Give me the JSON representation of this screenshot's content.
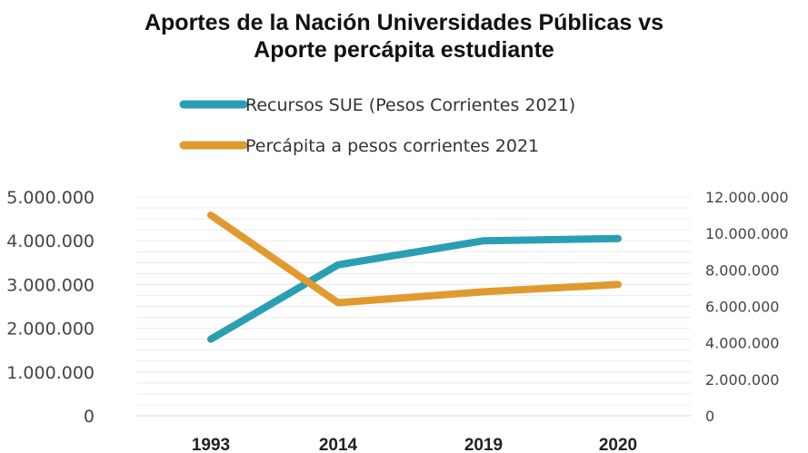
{
  "chart_data": {
    "type": "line",
    "title_line1": "Aportes de la Nación Universidades Públicas vs",
    "title_line2": "Aporte percápita estudiante",
    "categories": [
      "1993",
      "2014",
      "2019",
      "2020"
    ],
    "series": [
      {
        "name": "Recursos SUE (Pesos Corrientes 2021)",
        "axis": "left",
        "color": "#2a9fb3",
        "values": [
          1750000,
          3450000,
          4000000,
          4050000
        ]
      },
      {
        "name": "Percápita  a pesos corrientes 2021",
        "axis": "right",
        "color": "#e09a2e",
        "values": [
          11000000,
          6200000,
          6800000,
          7200000
        ]
      }
    ],
    "y_left": {
      "ylim": [
        0,
        5000000
      ],
      "ticks": [
        0,
        1000000,
        2000000,
        3000000,
        4000000,
        5000000
      ],
      "tick_labels": [
        "0",
        "1.000.000",
        "2.000.000",
        "3.000.000",
        "4.000.000",
        "5.000.000"
      ]
    },
    "y_right": {
      "ylim": [
        0,
        12000000
      ],
      "ticks": [
        0,
        2000000,
        4000000,
        6000000,
        8000000,
        10000000,
        12000000
      ],
      "tick_labels": [
        "0",
        "2.000.000",
        "4.000.000",
        "6.000.000",
        "8.000.000",
        "10.000.000",
        "12.000.000"
      ]
    },
    "grid": true,
    "legend": "top-center"
  }
}
